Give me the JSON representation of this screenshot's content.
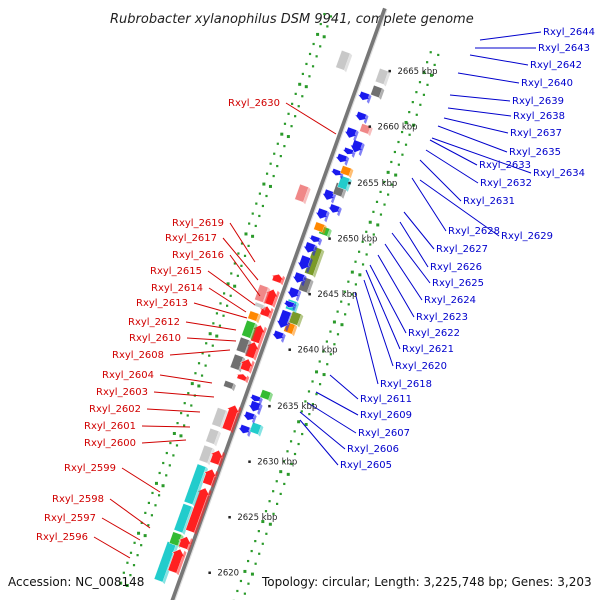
{
  "title": "Rubrobacter xylanophilus DSM 9941, complete genome",
  "accession": "Accession: NC_008148",
  "topology": "Topology: circular; Length: 3,225,748 bp; Genes: 3,203",
  "kbp_marks": [
    "2665 kbp",
    "2660 kbp",
    "2655 kbp",
    "2650 kbp",
    "2645 kbp",
    "2640 kbp",
    "2635 kbp",
    "2630 kbp",
    "2625 kbp",
    "2620"
  ],
  "colors": {
    "plus_label": "#d00000",
    "minus_label": "#0000cc",
    "axis": "#888888",
    "tick": "#2a9a2a",
    "gene_red": "#ff2020",
    "gene_pink": "#f08888",
    "gene_blue": "#1a1aee",
    "gene_cyan": "#22cccc",
    "gene_green": "#33bb33",
    "gene_olive": "#7a9a28",
    "gene_orange": "#ff8800",
    "gene_gray": "#707070",
    "gene_lightgray": "#c8c8c8"
  },
  "genes_plus": [
    "Rxyl_2630",
    "Rxyl_2619",
    "Rxyl_2617",
    "Rxyl_2616",
    "Rxyl_2615",
    "Rxyl_2614",
    "Rxyl_2613",
    "Rxyl_2612",
    "Rxyl_2610",
    "Rxyl_2608",
    "Rxyl_2604",
    "Rxyl_2603",
    "Rxyl_2602",
    "Rxyl_2601",
    "Rxyl_2600",
    "Rxyl_2599",
    "Rxyl_2598",
    "Rxyl_2597",
    "Rxyl_2596"
  ],
  "genes_minus": [
    "Rxyl_2644",
    "Rxyl_2643",
    "Rxyl_2642",
    "Rxyl_2640",
    "Rxyl_2639",
    "Rxyl_2638",
    "Rxyl_2637",
    "Rxyl_2635",
    "Rxyl_2634",
    "Rxyl_2633",
    "Rxyl_2632",
    "Rxyl_2631",
    "Rxyl_2628",
    "Rxyl_2629",
    "Rxyl_2627",
    "Rxyl_2626",
    "Rxyl_2625",
    "Rxyl_2624",
    "Rxyl_2623",
    "Rxyl_2622",
    "Rxyl_2621",
    "Rxyl_2620",
    "Rxyl_2618",
    "Rxyl_2611",
    "Rxyl_2609",
    "Rxyl_2607",
    "Rxyl_2606",
    "Rxyl_2605"
  ]
}
